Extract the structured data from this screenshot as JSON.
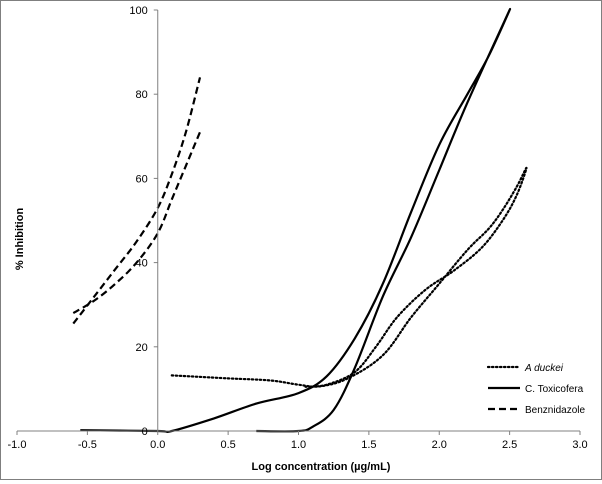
{
  "chart_data": {
    "type": "line",
    "xlabel": "Log concentration (µg/mL)",
    "ylabel": "% Inhibition",
    "xlim": [
      -1.0,
      3.0
    ],
    "ylim": [
      0,
      100
    ],
    "x_ticks": [
      "-1.0",
      "-0.5",
      "0.0",
      "0.5",
      "1.0",
      "1.5",
      "2.0",
      "2.5",
      "3.0"
    ],
    "y_ticks": [
      "0",
      "20",
      "40",
      "60",
      "80",
      "100"
    ],
    "grid": false,
    "legend_position": "bottom-right",
    "series": [
      {
        "name": "A duckei",
        "italic": true,
        "style": "dotted",
        "color": "#000000",
        "points": [
          [
            0.1,
            13.2
          ],
          [
            0.5,
            12.5
          ],
          [
            0.8,
            12.0
          ],
          [
            1.0,
            11.0
          ],
          [
            1.15,
            10.6
          ],
          [
            1.35,
            12.5
          ],
          [
            1.6,
            18.0
          ],
          [
            1.8,
            27.0
          ],
          [
            2.0,
            35.0
          ],
          [
            2.2,
            43.0
          ],
          [
            2.35,
            48.0
          ],
          [
            2.45,
            52.5
          ],
          [
            2.55,
            58.0
          ],
          [
            2.62,
            62.5
          ],
          [
            2.55,
            56.0
          ],
          [
            2.45,
            50.0
          ],
          [
            2.3,
            43.5
          ],
          [
            2.1,
            38.0
          ],
          [
            1.9,
            33.5
          ],
          [
            1.7,
            27.0
          ],
          [
            1.55,
            20.0
          ],
          [
            1.4,
            14.0
          ],
          [
            1.2,
            11.0
          ],
          [
            1.05,
            10.5
          ]
        ]
      },
      {
        "name": "C. Toxicofera",
        "italic": false,
        "style": "solid",
        "color": "#000000",
        "points": [
          [
            -0.55,
            0.2
          ],
          [
            0.0,
            0.0
          ],
          [
            0.1,
            0.0
          ],
          [
            0.4,
            3.0
          ],
          [
            0.7,
            6.5
          ],
          [
            1.0,
            9.0
          ],
          [
            1.2,
            13.0
          ],
          [
            1.4,
            22.0
          ],
          [
            1.6,
            35.0
          ],
          [
            1.8,
            52.0
          ],
          [
            2.0,
            68.0
          ],
          [
            2.2,
            80.0
          ],
          [
            2.35,
            89.0
          ],
          [
            2.5,
            100.0
          ],
          [
            2.2,
            78.0
          ],
          [
            2.0,
            62.0
          ],
          [
            1.8,
            46.0
          ],
          [
            1.6,
            32.0
          ],
          [
            1.4,
            15.0
          ],
          [
            1.25,
            5.0
          ],
          [
            1.1,
            1.0
          ],
          [
            1.0,
            0.0
          ],
          [
            0.7,
            0.0
          ]
        ]
      },
      {
        "name": "Benznidazole",
        "italic": false,
        "style": "dashed",
        "color": "#000000",
        "curves": [
          [
            [
              -0.6,
              25.5
            ],
            [
              -0.45,
              32.0
            ],
            [
              -0.3,
              38.5
            ],
            [
              -0.15,
              45.0
            ],
            [
              0.0,
              53.0
            ],
            [
              0.1,
              61.0
            ],
            [
              0.2,
              71.0
            ],
            [
              0.3,
              84.0
            ]
          ],
          [
            [
              -0.6,
              28.0
            ],
            [
              -0.45,
              31.0
            ],
            [
              -0.3,
              35.0
            ],
            [
              -0.15,
              40.0
            ],
            [
              0.0,
              47.0
            ],
            [
              0.1,
              55.0
            ],
            [
              0.2,
              63.0
            ],
            [
              0.3,
              71.0
            ]
          ]
        ]
      }
    ]
  }
}
